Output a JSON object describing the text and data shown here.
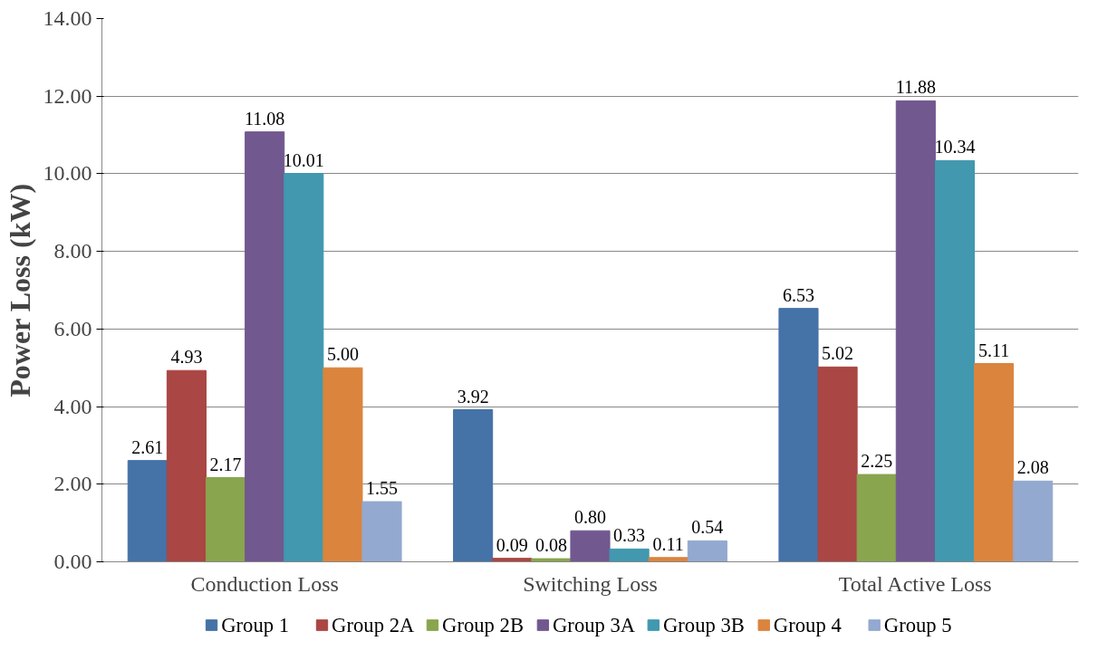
{
  "chart_data": {
    "type": "bar",
    "ylabel": "Power Loss (kW)",
    "categories": [
      "Conduction Loss",
      "Switching Loss",
      "Total Active Loss"
    ],
    "series": [
      {
        "name": "Group 1",
        "color": "#4572a7",
        "values": [
          2.61,
          3.92,
          6.53
        ],
        "value_labels": [
          "2.61",
          "3.92",
          "6.53"
        ]
      },
      {
        "name": "Group 2A",
        "color": "#aa4643",
        "values": [
          4.93,
          0.09,
          5.02
        ],
        "value_labels": [
          "4.93",
          "0.09",
          "5.02"
        ]
      },
      {
        "name": "Group 2B",
        "color": "#89a54e",
        "values": [
          2.17,
          0.08,
          2.25
        ],
        "value_labels": [
          "2.17",
          "0.08",
          "2.25"
        ]
      },
      {
        "name": "Group 3A",
        "color": "#71588f",
        "values": [
          11.08,
          0.8,
          11.88
        ],
        "value_labels": [
          "11.08",
          "0.80",
          "11.88"
        ]
      },
      {
        "name": "Group 3B",
        "color": "#4198af",
        "values": [
          10.01,
          0.33,
          10.34
        ],
        "value_labels": [
          "10.01",
          "0.33",
          "10.34"
        ]
      },
      {
        "name": "Group 4",
        "color": "#db843d",
        "values": [
          5.0,
          0.11,
          5.11
        ],
        "value_labels": [
          "5.00",
          "0.11",
          "5.11"
        ]
      },
      {
        "name": "Group 5",
        "color": "#93a9cf",
        "values": [
          1.55,
          0.54,
          2.08
        ],
        "value_labels": [
          "1.55",
          "0.54",
          "2.08"
        ]
      }
    ],
    "ylim": [
      0,
      14
    ],
    "yticks": [
      {
        "value": 0,
        "label": "0.00"
      },
      {
        "value": 2,
        "label": "2.00"
      },
      {
        "value": 4,
        "label": "4.00"
      },
      {
        "value": 6,
        "label": "6.00"
      },
      {
        "value": 8,
        "label": "8.00"
      },
      {
        "value": 10,
        "label": "10.00"
      },
      {
        "value": 12,
        "label": "12.00"
      },
      {
        "value": 14,
        "label": "14.00"
      }
    ],
    "grid": "y",
    "legend": "bottom"
  }
}
